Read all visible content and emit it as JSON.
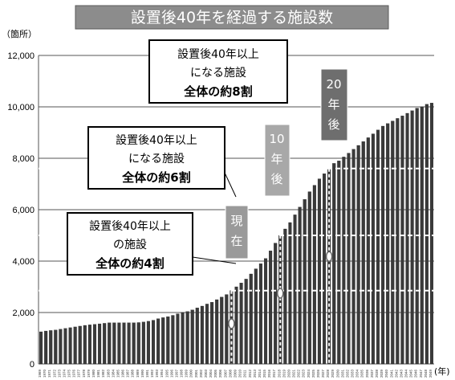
{
  "title": "設置後40年を経過する施設数",
  "y_unit_label": "（箇所）",
  "x_unit_label": "(年)",
  "annotations": [
    {
      "lines": [
        "設置後40年以上",
        "の施設",
        "全体の約4割"
      ]
    },
    {
      "lines": [
        "設置後40年以上",
        "になる施設",
        "全体の約6割"
      ]
    },
    {
      "lines": [
        "設置後40年以上",
        "になる施設",
        "全体の約8割"
      ]
    }
  ],
  "tags": [
    {
      "chars": [
        "現",
        "在"
      ]
    },
    {
      "chars": [
        "10",
        "年",
        "後"
      ]
    },
    {
      "chars": [
        "20",
        "年",
        "後"
      ]
    }
  ],
  "chart_data": {
    "type": "bar",
    "title": "設置後40年を経過する施設数",
    "xlabel": "(年)",
    "ylabel": "（箇所）",
    "ylim": [
      0,
      12000
    ],
    "yticks": [
      0,
      2000,
      4000,
      6000,
      8000,
      10000,
      12000
    ],
    "ytick_labels": [
      "0",
      "2,000",
      "4,000",
      "6,000",
      "8,000",
      "10,000",
      "12,000"
    ],
    "grid": true,
    "categories": [
      "1969",
      "1970",
      "1971",
      "1972",
      "1973",
      "1974",
      "1975",
      "1976",
      "1977",
      "1978",
      "1979",
      "1980",
      "1981",
      "1982",
      "1983",
      "1984",
      "1985",
      "1986",
      "1987",
      "1988",
      "1989",
      "1990",
      "1991",
      "1992",
      "1993",
      "1994",
      "1995",
      "1996",
      "1997",
      "1998",
      "1999",
      "2000",
      "2001",
      "2002",
      "2003",
      "2004",
      "2005",
      "2006",
      "2007",
      "2008",
      "2009",
      "2010",
      "2011",
      "2012",
      "2013",
      "2014",
      "2015",
      "2016",
      "2017",
      "2018",
      "2019",
      "2020",
      "2021",
      "2022",
      "2023",
      "2024",
      "2025",
      "2026",
      "2027",
      "2028",
      "2029",
      "2030",
      "2031",
      "2032",
      "2033",
      "2034",
      "2035",
      "2036",
      "2037",
      "2038",
      "2039",
      "2040",
      "2041",
      "2042",
      "2043",
      "2044",
      "2045",
      "2046",
      "2047",
      "2048",
      "2049"
    ],
    "values": [
      1250,
      1280,
      1300,
      1320,
      1350,
      1380,
      1410,
      1440,
      1470,
      1500,
      1520,
      1540,
      1560,
      1580,
      1600,
      1600,
      1600,
      1600,
      1600,
      1600,
      1610,
      1630,
      1660,
      1700,
      1760,
      1800,
      1840,
      1890,
      1950,
      2000,
      2040,
      2100,
      2180,
      2250,
      2330,
      2400,
      2500,
      2600,
      2700,
      2850,
      3000,
      3150,
      3300,
      3500,
      3700,
      3900,
      4100,
      4400,
      4700,
      5000,
      5250,
      5500,
      5800,
      6100,
      6400,
      6700,
      6950,
      7200,
      7400,
      7600,
      7800,
      7900,
      8050,
      8200,
      8350,
      8500,
      8650,
      8800,
      8950,
      9100,
      9250,
      9350,
      9450,
      9550,
      9650,
      9750,
      9850,
      9950,
      10000,
      10100,
      10150
    ],
    "markers": [
      {
        "year": "2008",
        "label": "現在",
        "approx_share": "約4割"
      },
      {
        "year": "2018",
        "label": "10年後",
        "approx_share": "約6割"
      },
      {
        "year": "2028",
        "label": "20年後",
        "approx_share": "約8割"
      }
    ]
  }
}
